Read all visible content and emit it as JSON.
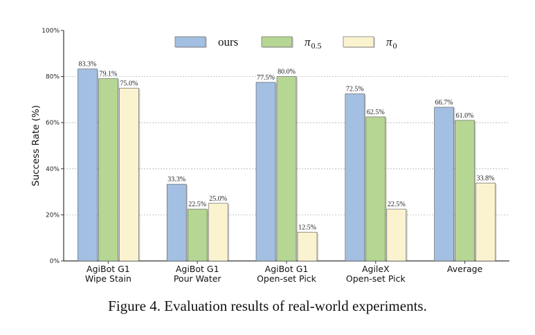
{
  "caption": "Figure 4. Evaluation results of real-world experiments.",
  "chart_data": {
    "type": "bar",
    "title": "",
    "xlabel": "",
    "ylabel": "Success Rate (%)",
    "ylim": [
      0,
      100
    ],
    "yticks": [
      0,
      20,
      40,
      60,
      80,
      100
    ],
    "ytick_suffix": "%",
    "grid": "horizontal dashed",
    "legend_position": "top-center",
    "categories": [
      [
        "AgiBot G1",
        "Wipe Stain"
      ],
      [
        "AgiBot G1",
        "Pour Water"
      ],
      [
        "AgiBot G1",
        "Open-set Pick"
      ],
      [
        "AgileX",
        "Open-set Pick"
      ],
      [
        "Average"
      ]
    ],
    "series": [
      {
        "name": "ours",
        "legend_main": "ours",
        "legend_sub": "",
        "color": "#a3bfe1",
        "values": [
          83.3,
          33.3,
          77.5,
          72.5,
          66.7
        ]
      },
      {
        "name": "π0.5",
        "legend_main": "π",
        "legend_sub": "0.5",
        "color": "#b6d693",
        "values": [
          79.1,
          22.5,
          80.0,
          62.5,
          61.0
        ]
      },
      {
        "name": "π0",
        "legend_main": "π",
        "legend_sub": "0",
        "color": "#fbf3d0",
        "values": [
          75.0,
          25.0,
          12.5,
          22.5,
          33.8
        ]
      }
    ],
    "value_format": "{v}%"
  }
}
